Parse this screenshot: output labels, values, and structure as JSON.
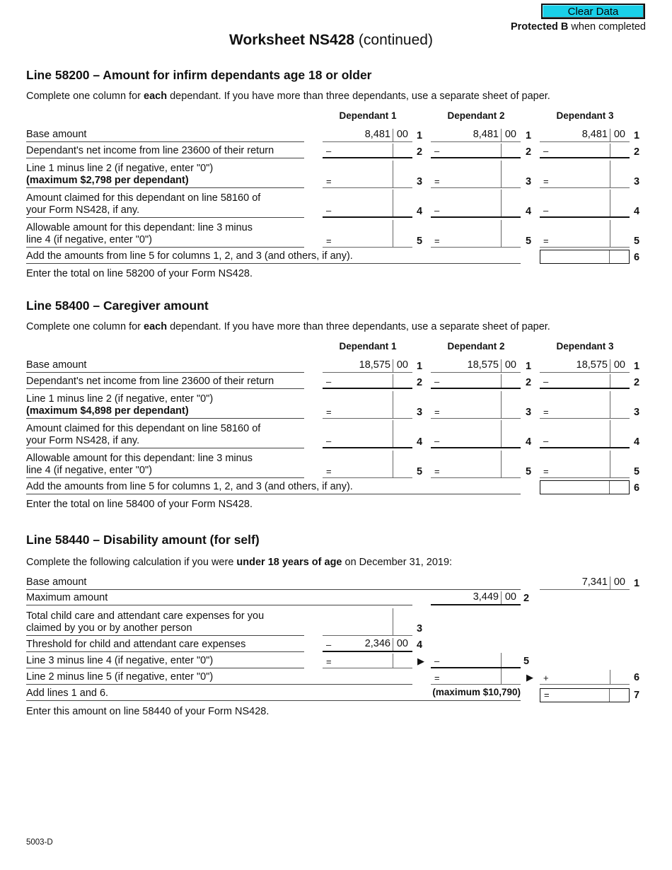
{
  "header": {
    "clear_button": "Clear Data",
    "protected": "Protected B",
    "protected_suffix": " when completed",
    "title_bold": "Worksheet NS428",
    "title_rest": " (continued)"
  },
  "sections": [
    {
      "heading": "Line 58200 – Amount for infirm dependants age 18 or older",
      "intro_pre": "Complete one column for ",
      "intro_bold": "each",
      "intro_post": " dependant. If you have more than three dependants, use a separate sheet of paper.",
      "columns": [
        "Dependant 1",
        "Dependant 2",
        "Dependant 3"
      ],
      "rows": [
        {
          "label": "Base amount",
          "label_bold": "",
          "sign": "",
          "value": "8,481",
          "cents": "00",
          "num": "1"
        },
        {
          "label": "Dependant's net income from line 23600 of their return",
          "label_bold": "",
          "sign": "–",
          "value": "",
          "cents": "",
          "num": "2"
        },
        {
          "label": "Line 1 minus line 2 (if negative, enter \"0\")",
          "label_bold": "(maximum $2,798 per dependant)",
          "sign": "=",
          "value": "",
          "cents": "",
          "num": "3"
        },
        {
          "label": "Amount claimed for this dependant on line 58160 of your Form NS428, if any.",
          "label_bold": "",
          "sign": "–",
          "value": "",
          "cents": "",
          "num": "4"
        },
        {
          "label": "Allowable amount for this dependant: line 3 minus line 4 (if negative, enter \"0\")",
          "label_bold": "",
          "sign": "=",
          "value": "",
          "cents": "",
          "num": "5"
        }
      ],
      "total_label": "Add the amounts from line 5 for columns 1, 2, and 3 (and others, if any).",
      "total_num": "6",
      "footer": "Enter the total on line 58200 of your Form NS428."
    },
    {
      "heading": "Line 58400 – Caregiver amount",
      "intro_pre": "Complete one column for ",
      "intro_bold": "each",
      "intro_post": " dependant. If you have more than three dependants, use a separate sheet of paper.",
      "columns": [
        "Dependant 1",
        "Dependant 2",
        "Dependant 3"
      ],
      "rows": [
        {
          "label": "Base amount",
          "label_bold": "",
          "sign": "",
          "value": "18,575",
          "cents": "00",
          "num": "1"
        },
        {
          "label": "Dependant's net income from line 23600 of their return",
          "label_bold": "",
          "sign": "–",
          "value": "",
          "cents": "",
          "num": "2"
        },
        {
          "label": "Line 1 minus line 2 (if negative, enter \"0\")",
          "label_bold": "(maximum $4,898 per dependant)",
          "sign": "=",
          "value": "",
          "cents": "",
          "num": "3"
        },
        {
          "label": "Amount claimed for this dependant on line 58160 of your Form NS428, if any.",
          "label_bold": "",
          "sign": "–",
          "value": "",
          "cents": "",
          "num": "4"
        },
        {
          "label": "Allowable amount for this dependant: line 3 minus line 4 (if negative, enter \"0\")",
          "label_bold": "",
          "sign": "=",
          "value": "",
          "cents": "",
          "num": "5"
        }
      ],
      "total_label": "Add the amounts from line 5 for columns 1, 2, and 3 (and others, if any).",
      "total_num": "6",
      "footer": "Enter the total on line 58400 of your Form NS428."
    }
  ],
  "disability": {
    "heading": "Line 58440 – Disability amount (for self)",
    "intro_pre": "Complete the following calculation if you were ",
    "intro_bold": "under 18 years of age",
    "intro_post": " on December 31, 2019:",
    "rows": [
      {
        "label": "Base amount",
        "value": "7,341",
        "cents": "00",
        "num": "1"
      },
      {
        "label": "Maximum amount",
        "value": "3,449",
        "cents": "00",
        "num": "2"
      },
      {
        "label": "Total child care and attendant care expenses for you claimed by you or by another person",
        "num": "3"
      },
      {
        "label": "Threshold for child and attendant care expenses",
        "sign": "–",
        "value": "2,346",
        "cents": "00",
        "num": "4"
      },
      {
        "label": "Line 3 minus line 4 (if negative, enter \"0\")",
        "sign": "=",
        "sign2": "–",
        "num": "5"
      },
      {
        "label": "Line 2 minus line 5 (if negative, enter \"0\")",
        "sign": "=",
        "sign2": "+",
        "num": "6"
      },
      {
        "label": "Add lines 1 and 6.",
        "note": "(maximum $10,790)",
        "sign": "=",
        "num": "7"
      }
    ],
    "footer": "Enter this amount on line 58440 of your Form NS428."
  },
  "form_code": "5003-D"
}
